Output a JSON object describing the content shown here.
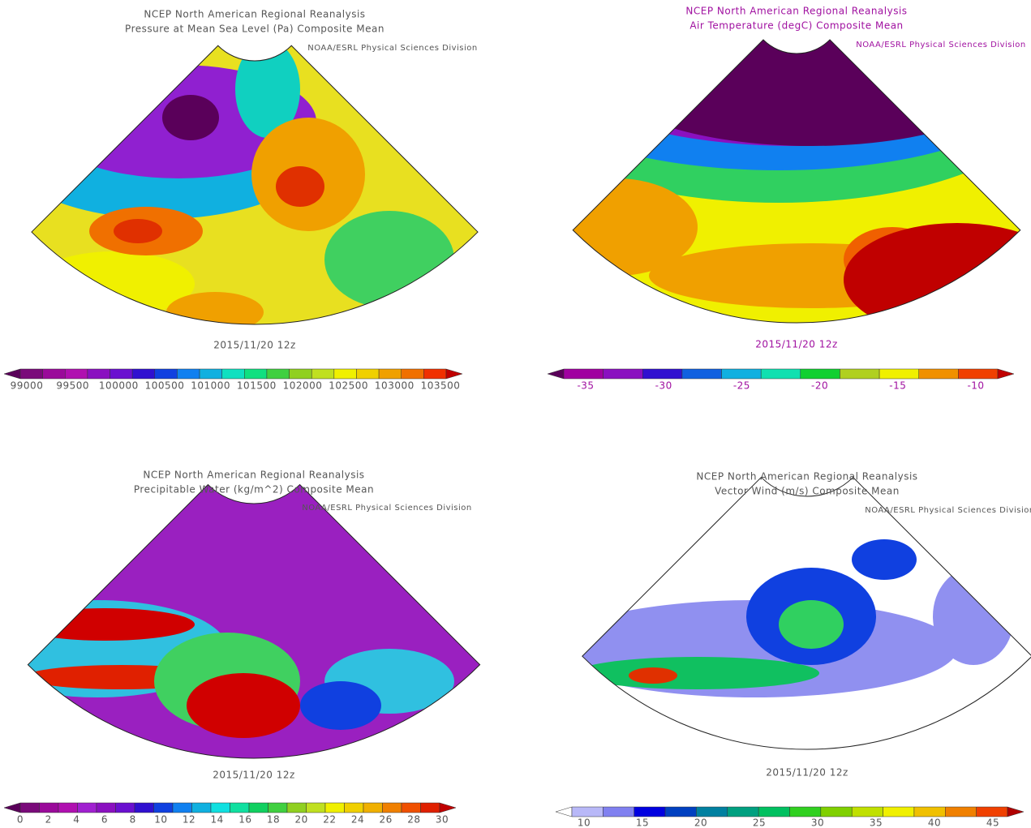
{
  "panels": [
    {
      "title": "NCEP North American Regional Reanalysis",
      "subtitle": "Pressure at Mean Sea Level (Pa) Composite Mean",
      "credit": "NOAA/ESRL Physical Sciences Division",
      "date": "2015/11/20 12z",
      "text_color": "#555555",
      "colorbar": {
        "colors": [
          "#5a005a",
          "#7a0a7a",
          "#9a0a9a",
          "#b010b0",
          "#8a10c0",
          "#6a10d0",
          "#3010d0",
          "#1040e0",
          "#1080f0",
          "#10b0e0",
          "#10e0c0",
          "#10e080",
          "#40d040",
          "#90d020",
          "#c0e020",
          "#f0f000",
          "#f0d000",
          "#f0a000",
          "#f07000",
          "#f03000",
          "#c00000"
        ],
        "labels": [
          99000,
          99500,
          100000,
          100500,
          101000,
          101500,
          102000,
          102500,
          103000,
          103500
        ]
      }
    },
    {
      "title": "NCEP North American Regional Reanalysis",
      "subtitle": "Air Temperature (degC) Composite Mean",
      "credit": "NOAA/ESRL Physical Sciences Division",
      "date": "2015/11/20 12z",
      "text_color": "#a010a0",
      "colorbar": {
        "colors": [
          "#5a005a",
          "#a000a0",
          "#8a10c0",
          "#3010d0",
          "#1060e0",
          "#10b0e0",
          "#10e0b0",
          "#10d030",
          "#b0d020",
          "#f0f000",
          "#f09000",
          "#f04000",
          "#c00000"
        ],
        "labels": [
          -35,
          -30,
          -25,
          -20,
          -15,
          -10
        ]
      }
    },
    {
      "title": "NCEP North American Regional Reanalysis",
      "subtitle": "Precipitable Water (kg/m^2) Composite Mean",
      "credit": "NOAA/ESRL Physical Sciences Division",
      "date": "2015/11/20 12z",
      "text_color": "#555555",
      "colorbar": {
        "colors": [
          "#5a005a",
          "#7a0a7a",
          "#9a0a9a",
          "#b010b0",
          "#a020d0",
          "#8a10c0",
          "#6a10d0",
          "#3010d0",
          "#1040e0",
          "#1080f0",
          "#10b0e0",
          "#10e0e0",
          "#10e0a0",
          "#10d060",
          "#40d040",
          "#90d020",
          "#c0e020",
          "#f0f000",
          "#f0d000",
          "#f0b000",
          "#f08000",
          "#f05000",
          "#e02000",
          "#c00000"
        ],
        "labels": [
          0,
          2,
          4,
          6,
          8,
          10,
          12,
          14,
          16,
          18,
          20,
          22,
          24,
          26,
          28,
          30
        ]
      }
    },
    {
      "title": "NCEP North American Regional Reanalysis",
      "subtitle": "Vector Wind (m/s) Composite Mean",
      "credit": "NOAA/ESRL Physical Sciences Division",
      "date": "2015/11/20 12z",
      "text_color": "#555555",
      "colorbar": {
        "colors": [
          "#ffffff",
          "#b8b8f8",
          "#8080f0",
          "#0000e0",
          "#0040c0",
          "#0080a0",
          "#00a080",
          "#00c060",
          "#30d020",
          "#80d000",
          "#c0e000",
          "#f0f000",
          "#f0c000",
          "#f08000",
          "#f04000",
          "#b00000"
        ],
        "labels": [
          10,
          15,
          20,
          25,
          30,
          35,
          40,
          45
        ]
      }
    }
  ]
}
